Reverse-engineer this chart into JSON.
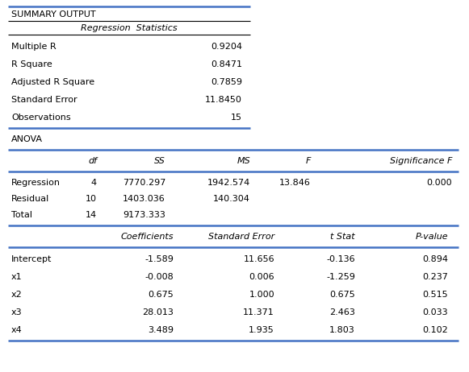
{
  "title": "SUMMARY OUTPUT",
  "section1_header": "Regression  Statistics",
  "reg_stats": [
    [
      "Multiple R",
      "0.9204"
    ],
    [
      "R Square",
      "0.8471"
    ],
    [
      "Adjusted R Square",
      "0.7859"
    ],
    [
      "Standard Error",
      "11.8450"
    ],
    [
      "Observations",
      "15"
    ]
  ],
  "section2_header": "ANOVA",
  "anova_col_headers": [
    "",
    "df",
    "SS",
    "MS",
    "F",
    "Significance F"
  ],
  "anova_rows": [
    [
      "Regression",
      "4",
      "7770.297",
      "1942.574",
      "13.846",
      "0.000"
    ],
    [
      "Residual",
      "10",
      "1403.036",
      "140.304",
      "",
      ""
    ],
    [
      "Total",
      "14",
      "9173.333",
      "",
      "",
      ""
    ]
  ],
  "coeff_col_headers": [
    "",
    "Coefficients",
    "Standard Error",
    "t Stat",
    "P-value"
  ],
  "coeff_rows": [
    [
      "Intercept",
      "-1.589",
      "11.656",
      "-0.136",
      "0.894"
    ],
    [
      "x1",
      "-0.008",
      "0.006",
      "-1.259",
      "0.237"
    ],
    [
      "x2",
      "0.675",
      "1.000",
      "0.675",
      "0.515"
    ],
    [
      "x3",
      "28.013",
      "11.371",
      "2.463",
      "0.033"
    ],
    [
      "x4",
      "3.489",
      "1.935",
      "1.803",
      "0.102"
    ]
  ],
  "bg_color": "#ffffff",
  "line_color_thick": "#4472c4",
  "line_color_thin": "#000000",
  "fs": 8.0
}
